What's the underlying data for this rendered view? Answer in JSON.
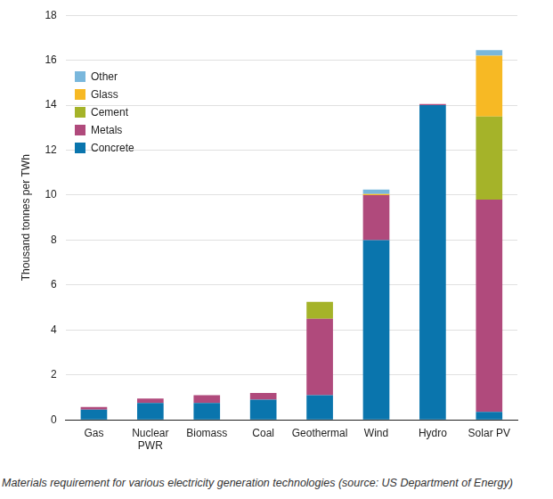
{
  "chart_data": {
    "type": "bar",
    "stacked": true,
    "caption": "Materials requirement for various electricity generation technologies (source: US Department of Energy)",
    "y_label": "Thousand tonnes per TWh",
    "categories": [
      "Gas",
      "Nuclear PWR",
      "Biomass",
      "Coal",
      "Geothermal",
      "Wind",
      "Hydro",
      "Solar PV"
    ],
    "series": [
      {
        "name": "Concrete",
        "color": "#0a75ad",
        "values": [
          0.45,
          0.75,
          0.75,
          0.9,
          1.1,
          8.0,
          14.0,
          0.35
        ]
      },
      {
        "name": "Metals",
        "color": "#b04a7c",
        "values": [
          0.12,
          0.2,
          0.35,
          0.3,
          3.4,
          2.0,
          0.05,
          9.45
        ]
      },
      {
        "name": "Cement",
        "color": "#a5b329",
        "values": [
          0,
          0,
          0,
          0,
          0.75,
          0,
          0,
          3.7
        ]
      },
      {
        "name": "Glass",
        "color": "#f7b924",
        "values": [
          0,
          0,
          0,
          0,
          0,
          0.05,
          0,
          2.7
        ]
      },
      {
        "name": "Other",
        "color": "#79b7dc",
        "values": [
          0,
          0,
          0,
          0,
          0,
          0.2,
          0,
          0.25
        ]
      }
    ],
    "ylim": [
      0,
      18
    ],
    "yticks": [
      0,
      2,
      4,
      6,
      8,
      10,
      12,
      14,
      16,
      18
    ],
    "grid": true,
    "legend": "upper left"
  }
}
